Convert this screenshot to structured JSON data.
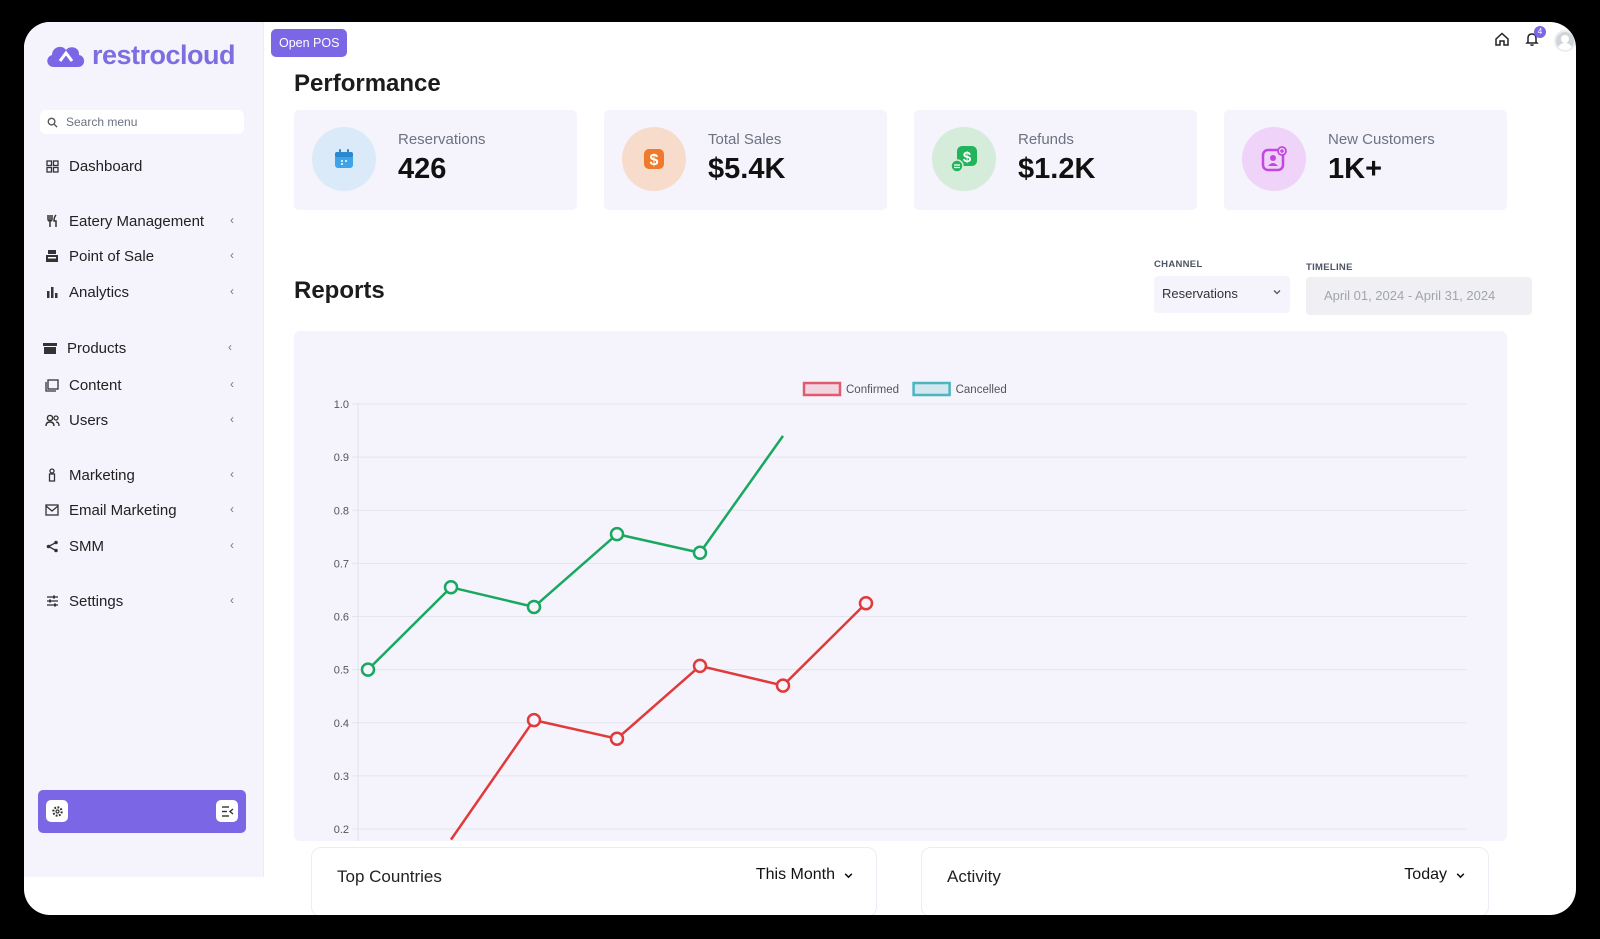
{
  "brand": {
    "name": "restrocloud",
    "color": "#7b67e6"
  },
  "sidebar": {
    "search_placeholder": "Search menu",
    "items": [
      {
        "label": "Dashboard",
        "icon": "grid-icon"
      },
      {
        "label": "Eatery Management",
        "icon": "utensils-icon"
      },
      {
        "label": "Point of Sale",
        "icon": "register-icon"
      },
      {
        "label": "Analytics",
        "icon": "bar-chart-icon"
      },
      {
        "label": "Products",
        "icon": "archive-box-icon"
      },
      {
        "label": "Content",
        "icon": "content-icon"
      },
      {
        "label": "Users",
        "icon": "users-icon"
      },
      {
        "label": "Marketing",
        "icon": "marketing-icon"
      },
      {
        "label": "Email Marketing",
        "icon": "mail-icon"
      },
      {
        "label": "SMM",
        "icon": "share-icon"
      },
      {
        "label": "Settings",
        "icon": "sliders-icon"
      }
    ]
  },
  "header": {
    "open_pos": "Open POS",
    "notification_count": "4"
  },
  "performance": {
    "title": "Performance",
    "cards": [
      {
        "label": "Reservations",
        "value": "426",
        "icon": "calendar-icon",
        "color": "#3fa3e8"
      },
      {
        "label": "Total Sales",
        "value": "$5.4K",
        "icon": "dollar-icon",
        "color": "#f07a2b"
      },
      {
        "label": "Refunds",
        "value": "$1.2K",
        "icon": "refund-icon",
        "color": "#22b45a"
      },
      {
        "label": "New Customers",
        "value": "1K+",
        "icon": "new-customer-icon",
        "color": "#c347e0"
      }
    ]
  },
  "reports": {
    "title": "Reports",
    "channel_label": "CHANNEL",
    "channel_value": "Reservations",
    "timeline_label": "TIMELINE",
    "timeline_value": "April 01, 2024 - April 31, 2024"
  },
  "chart_data": {
    "type": "line",
    "legend_position": "top",
    "grid": true,
    "ylim": [
      0.2,
      1.0
    ],
    "yticks": [
      "1.0",
      "0.9",
      "0.8",
      "0.7",
      "0.6",
      "0.5",
      "0.4",
      "0.3",
      "0.2"
    ],
    "legend": [
      {
        "name": "Confirmed",
        "color": "#e05a72"
      },
      {
        "name": "Cancelled",
        "color": "#4bb6c0"
      }
    ],
    "series": [
      {
        "color": "#1aa760",
        "values": [
          0.5,
          0.655,
          0.618,
          0.755,
          0.72,
          0.94
        ],
        "markers": [
          true,
          true,
          true,
          true,
          true,
          false
        ]
      },
      {
        "color": "#e03a3a",
        "values": [
          0.18,
          0.405,
          0.37,
          0.507,
          0.47,
          0.625
        ],
        "markers": [
          false,
          true,
          true,
          true,
          true,
          true
        ],
        "x_offset": 1
      }
    ]
  },
  "panels": {
    "top_countries": {
      "title": "Top Countries",
      "filter": "This Month"
    },
    "activity": {
      "title": "Activity",
      "filter": "Today"
    }
  }
}
